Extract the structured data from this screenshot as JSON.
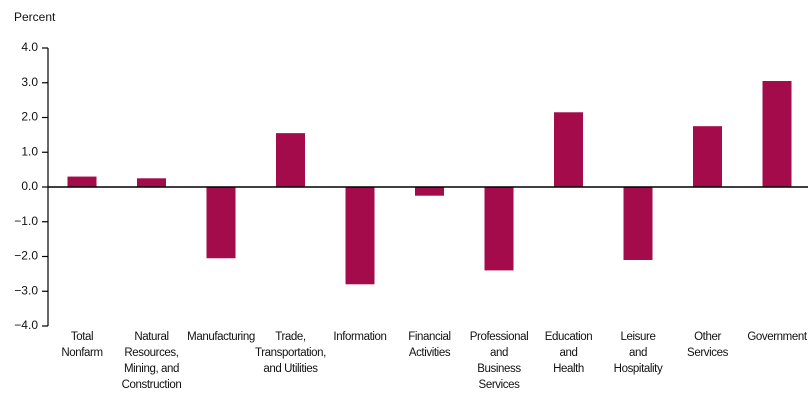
{
  "chart_data": {
    "type": "bar",
    "y_axis_label": "Percent",
    "categories": [
      [
        "Total",
        "Nonfarm"
      ],
      [
        "Natural",
        "Resources,",
        "Mining, and",
        "Construction"
      ],
      [
        "Manufacturing"
      ],
      [
        "Trade,",
        "Transportation,",
        "and Utilities"
      ],
      [
        "Information"
      ],
      [
        "Financial",
        "Activities"
      ],
      [
        "Professional",
        "and",
        "Business",
        "Services"
      ],
      [
        "Education",
        "and",
        "Health"
      ],
      [
        "Leisure",
        "and",
        "Hospitality"
      ],
      [
        "Other",
        "Services"
      ],
      [
        "Government"
      ]
    ],
    "values": [
      0.3,
      0.25,
      -2.05,
      1.55,
      -2.8,
      -0.25,
      -2.4,
      2.15,
      -2.1,
      1.75,
      3.05
    ],
    "color": "#a30b4a",
    "ylim": [
      -4,
      4
    ],
    "yticks": [
      {
        "value": -4,
        "label": "−4.0"
      },
      {
        "value": -3,
        "label": "−3.0"
      },
      {
        "value": -2,
        "label": "−2.0"
      },
      {
        "value": -1,
        "label": "−1.0"
      },
      {
        "value": 0,
        "label": "0.0"
      },
      {
        "value": 1,
        "label": "1.0"
      },
      {
        "value": 2,
        "label": "2.0"
      },
      {
        "value": 3,
        "label": "3.0"
      },
      {
        "value": 4,
        "label": "4.0"
      }
    ]
  }
}
